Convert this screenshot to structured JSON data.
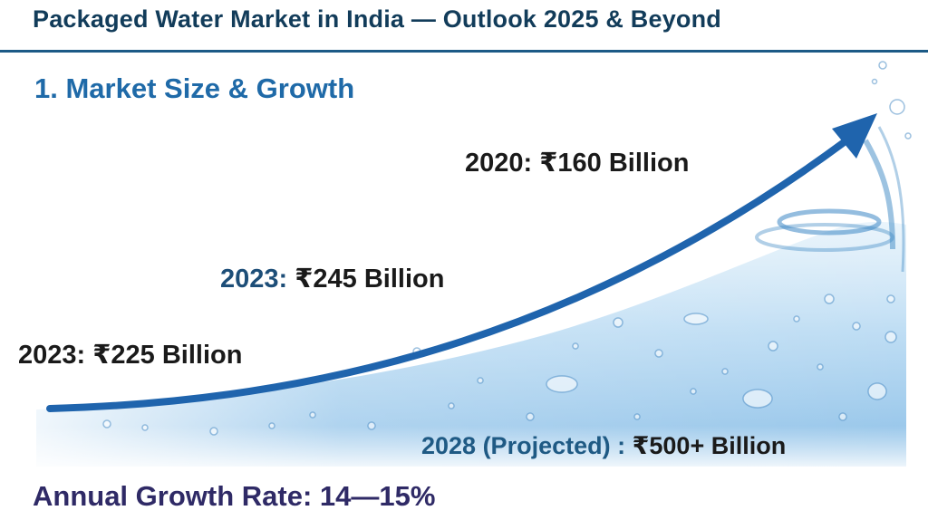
{
  "title": "Packaged Water Market in India — Outlook 2025 & Beyond",
  "section_heading": "1. Market Size & Growth",
  "growth_rate": "Annual Growth Rate: 14—15%",
  "colors": {
    "title": "#123c5a",
    "heading": "#1f6aa8",
    "arrow": "#1f64ad",
    "water": "#8fc4ea",
    "growth_text": "#2f2a66"
  },
  "chart_data": {
    "type": "line",
    "style": "growth arrow over water illustration",
    "points": [
      {
        "year_label": "2023:",
        "value_label": "₹225 Billion",
        "year": 2023,
        "value": 225
      },
      {
        "year_label": "2023:",
        "value_label": "₹245 Billion",
        "year": 2023,
        "value": 245
      },
      {
        "year_label": "2020:",
        "value_label": "₹160 Billion",
        "year": 2020,
        "value": 160
      },
      {
        "year_label": "2028 (Projected) :",
        "value_label": "₹500+ Billion",
        "year": 2028,
        "value": 500
      }
    ],
    "title": "",
    "xlabel": "",
    "ylabel": "",
    "grid": false,
    "legend": "none"
  }
}
